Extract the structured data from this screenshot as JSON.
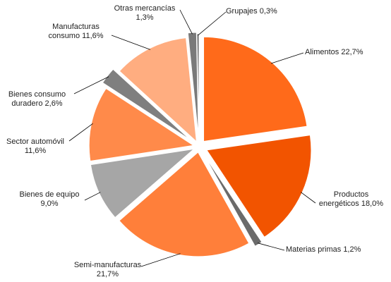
{
  "chart_data": {
    "type": "pie",
    "categories": [
      "Alimentos",
      "Productos energéticos",
      "Materias primas",
      "Semi-manufacturas",
      "Bienes de equipo",
      "Sector automóvil",
      "Bienes consumo duradero",
      "Manufacturas consumo",
      "Otras mercancías",
      "Grupajes"
    ],
    "values": [
      22.7,
      18.0,
      1.2,
      21.7,
      9.0,
      11.6,
      2.6,
      11.6,
      1.3,
      0.3
    ],
    "value_labels": [
      "22,7%",
      "18,0%",
      "1,2%",
      "21,7%",
      "9,0%",
      "11,6%",
      "2,6%",
      "11,6%",
      "1,3%",
      "0,3%"
    ],
    "colors": [
      "#ff6a1a",
      "#f25400",
      "#6b6b6b",
      "#ff7f3a",
      "#a6a6a6",
      "#ff8a4a",
      "#7f7f7f",
      "#ffad80",
      "#7a7a7a",
      "#595959"
    ]
  }
}
